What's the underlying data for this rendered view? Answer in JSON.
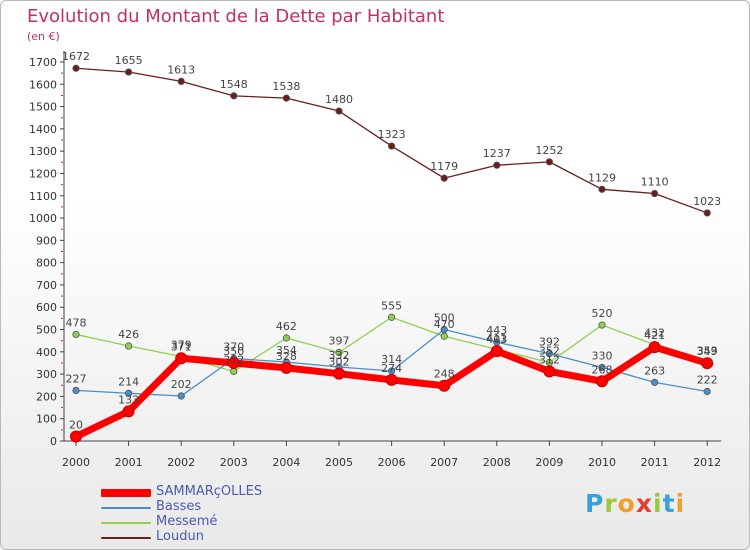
{
  "title": "Evolution du Montant de la Dette par Habitant",
  "unit": "(en €)",
  "logo": {
    "text": "Proxiti",
    "letters": [
      "P",
      "r",
      "o",
      "x",
      "i",
      "t",
      "i"
    ],
    "colors": [
      "#3aa0dc",
      "#9cc83c",
      "#f0a028",
      "#e83c30",
      "#9cc83c",
      "#3aa0dc",
      "#f0a028"
    ]
  },
  "chart_data": {
    "type": "line",
    "title": "Evolution du Montant de la Dette par Habitant",
    "ylabel": "(en €)",
    "xlabel": "",
    "categories": [
      "2000",
      "2001",
      "2002",
      "2003",
      "2004",
      "2005",
      "2006",
      "2007",
      "2008",
      "2009",
      "2010",
      "2011",
      "2012"
    ],
    "ylim": [
      0,
      1700
    ],
    "yticks": [
      0,
      100,
      200,
      300,
      400,
      500,
      600,
      700,
      800,
      900,
      1000,
      1100,
      1200,
      1300,
      1400,
      1500,
      1600,
      1700
    ],
    "grid": false,
    "legend_position": "bottom-left",
    "series": [
      {
        "name": "SAMMARçOLLES",
        "color": "#ff0000",
        "values": [
          20,
          133,
          371,
          350,
          328,
          302,
          274,
          248,
          403,
          312,
          268,
          421,
          349
        ],
        "labels": [
          "20",
          "133",
          "371",
          "350",
          "328",
          "302",
          "274",
          "248",
          "403",
          "312",
          "268",
          "421",
          "349"
        ]
      },
      {
        "name": "Basses",
        "color": "#4a90c8",
        "values": [
          227,
          214,
          202,
          370,
          354,
          332,
          314,
          500,
          443,
          392,
          330,
          263,
          222
        ],
        "labels": [
          "227",
          "214",
          "202",
          "370",
          "354",
          "332",
          "314",
          "500",
          "443",
          "392",
          "330",
          "263",
          "222"
        ]
      },
      {
        "name": "Messemé",
        "color": "#8fd14f",
        "values": [
          478,
          426,
          379,
          312,
          462,
          397,
          555,
          470,
          411,
          352,
          520,
          432,
          353
        ],
        "labels": [
          "478",
          "426",
          "379",
          "312",
          "462",
          "397",
          "555",
          "470",
          "411",
          "352",
          "520",
          "432",
          "353"
        ]
      },
      {
        "name": "Loudun",
        "color": "#6b1e1e",
        "values": [
          1672,
          1655,
          1613,
          1548,
          1538,
          1480,
          1323,
          1179,
          1237,
          1252,
          1129,
          1110,
          1023
        ],
        "labels": [
          "1672",
          "1655",
          "1613",
          "1548",
          "1538",
          "1480",
          "1323",
          "1179",
          "1237",
          "1252",
          "1129",
          "1110",
          "1023"
        ]
      }
    ]
  }
}
